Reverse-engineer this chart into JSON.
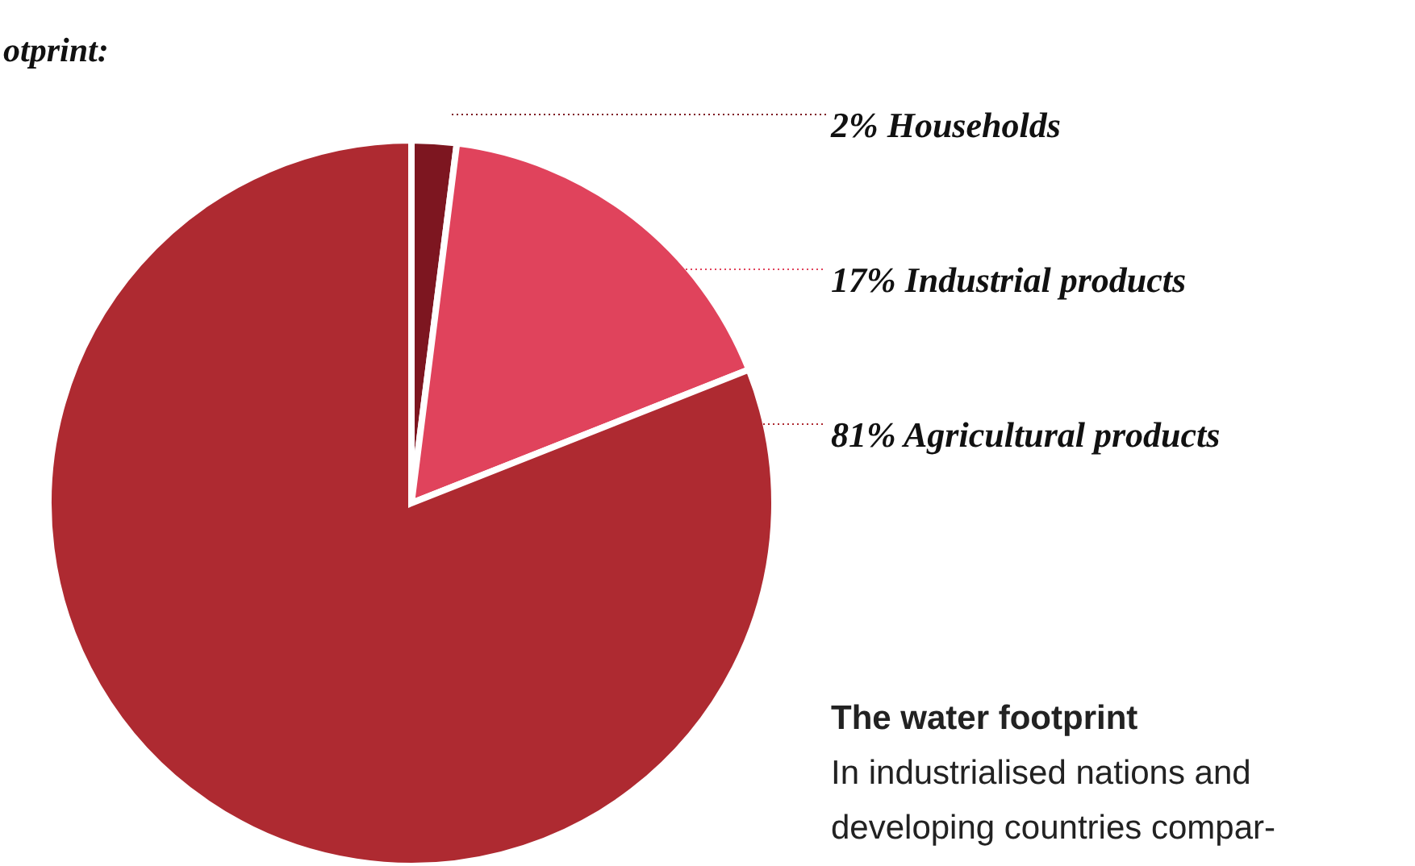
{
  "chart_data": {
    "type": "pie",
    "title": "otprint:",
    "categories": [
      "Households",
      "Industrial products",
      "Agricultural products"
    ],
    "values": [
      2,
      17,
      81
    ],
    "value_labels": [
      "2%",
      "17%",
      "81%"
    ],
    "colors": [
      "#7d1620",
      "#e0435c",
      "#ae2a31"
    ],
    "annotations": [
      "The water footprint",
      "In industrialised nations and",
      "developing countries compar-"
    ]
  }
}
